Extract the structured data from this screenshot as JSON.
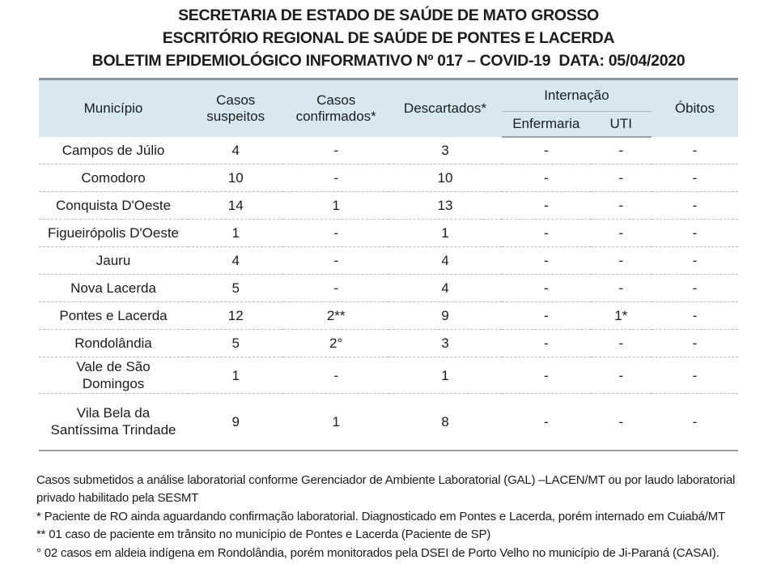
{
  "title": {
    "line1": "SECRETARIA DE ESTADO DE SAÚDE DE MATO GROSSO",
    "line2": "ESCRITÓRIO REGIONAL DE SAÚDE DE PONTES E LACERDA",
    "line3": "BOLETIM EPIDEMIOLÓGICO INFORMATIVO Nº 017 – COVID-19  DATA: 05/04/2020"
  },
  "table": {
    "headers": {
      "municipio": "Município",
      "casos_suspeitos": "Casos suspeitos",
      "casos_confirmados": "Casos confirmados*",
      "descartados": "Descartados*",
      "internacao": "Internação",
      "enfermaria": "Enfermaria",
      "uti": "UTI",
      "obitos": "Óbitos"
    },
    "rows": [
      {
        "municipio": "Campos de Júlio",
        "casos_suspeitos": "4",
        "casos_confirmados": "-",
        "descartados": "3",
        "enfermaria": "-",
        "uti": "-",
        "obitos": "-"
      },
      {
        "municipio": "Comodoro",
        "casos_suspeitos": "10",
        "casos_confirmados": "-",
        "descartados": "10",
        "enfermaria": "-",
        "uti": "-",
        "obitos": "-"
      },
      {
        "municipio": "Conquista D'Oeste",
        "casos_suspeitos": "14",
        "casos_confirmados": "1",
        "descartados": "13",
        "enfermaria": "-",
        "uti": "-",
        "obitos": "-"
      },
      {
        "municipio": "Figueirópolis D'Oeste",
        "casos_suspeitos": "1",
        "casos_confirmados": "-",
        "descartados": "1",
        "enfermaria": "-",
        "uti": "-",
        "obitos": "-"
      },
      {
        "municipio": "Jauru",
        "casos_suspeitos": "4",
        "casos_confirmados": "-",
        "descartados": "4",
        "enfermaria": "-",
        "uti": "-",
        "obitos": "-"
      },
      {
        "municipio": "Nova Lacerda",
        "casos_suspeitos": "5",
        "casos_confirmados": "-",
        "descartados": "4",
        "enfermaria": "-",
        "uti": "-",
        "obitos": "-"
      },
      {
        "municipio": "Pontes e Lacerda",
        "casos_suspeitos": "12",
        "casos_confirmados": "2**",
        "descartados": "9",
        "enfermaria": "-",
        "uti": "1*",
        "obitos": "-"
      },
      {
        "municipio": "Rondolândia",
        "casos_suspeitos": "5",
        "casos_confirmados": "2°",
        "descartados": "3",
        "enfermaria": "-",
        "uti": "-",
        "obitos": "-"
      },
      {
        "municipio": "Vale de São Domingos",
        "casos_suspeitos": "1",
        "casos_confirmados": "-",
        "descartados": "1",
        "enfermaria": "-",
        "uti": "-",
        "obitos": "-"
      },
      {
        "municipio": "Vila Bela da Santíssima Trindade",
        "casos_suspeitos": "9",
        "casos_confirmados": "1",
        "descartados": "8",
        "enfermaria": "-",
        "uti": "-",
        "obitos": "-"
      }
    ]
  },
  "footnotes": [
    "Casos submetidos a análise laboratorial conforme Gerenciador de Ambiente Laboratorial (GAL) –LACEN/MT ou por laudo laboratorial privado habilitado pela SESMT",
    "* Paciente de RO ainda aguardando confirmação laboratorial. Diagnosticado em Pontes e Lacerda, porém internado em Cuiabá/MT",
    "** 01 caso de paciente em trânsito no município de Pontes e Lacerda (Paciente de SP)",
    "° 02 casos em aldeia indígena em Rondolândia, porém monitorados pela DSEI de Porto Velho no município de Ji-Paraná (CASAI)."
  ],
  "colors": {
    "header_bg": "#d7e8f1",
    "table_top_border": "#8a97a0",
    "header_rule": "#97a2a8",
    "row_divider": "#bdbdbd",
    "table_bottom_border": "#9e9e9e",
    "text": "#1c1c1c"
  }
}
